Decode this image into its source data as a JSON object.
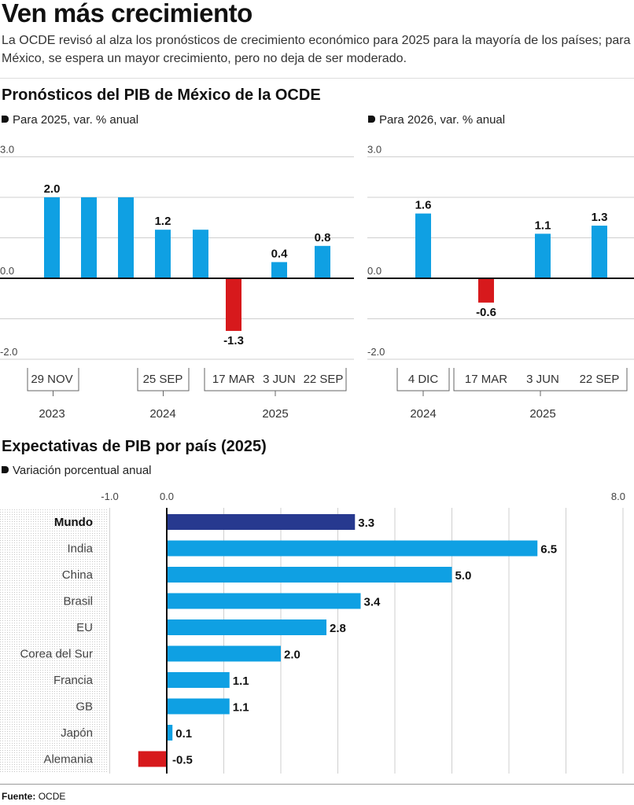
{
  "header": {
    "title": "Ven más crecimiento",
    "subtitle": "La OCDE revisó al alza los pronósticos de crecimiento económico para 2025 para la mayoría de los países; para México, se espera un mayor crecimiento, pero no deja de ser moderado."
  },
  "section1": {
    "title": "Pronósticos del PIB de México de la OCDE"
  },
  "section2": {
    "title": "Expectativas de PIB por país (2025)"
  },
  "footer": {
    "source_label": "Fuente:",
    "source_value": "OCDE"
  },
  "colors": {
    "positive": "#0fa0e3",
    "negative": "#d7191c",
    "highlight": "#27398f",
    "axis": "#111111",
    "grid": "#cfcfcf"
  },
  "chart_data": [
    {
      "type": "bar",
      "subtitle": "Para 2025, var. % anual",
      "categories": [
        "29 NOV 2023",
        "",
        "",
        "25 SEP 2024",
        "",
        "17 MAR 2025",
        "3 JUN 2025",
        "22 SEP 2025"
      ],
      "values": [
        2.0,
        2.0,
        2.0,
        1.2,
        1.2,
        -1.3,
        0.4,
        0.8
      ],
      "data_labels": [
        "2.0",
        "",
        "",
        "1.2",
        "",
        "-1.3",
        "0.4",
        "0.8"
      ],
      "date_labels": [
        "29 NOV",
        "25 SEP",
        "17 MAR",
        "3 JUN",
        "22 SEP"
      ],
      "year_labels": [
        "2023",
        "2024",
        "2025"
      ],
      "y_ticks": [
        "3.0",
        "0.0",
        "-2.0"
      ],
      "ylim": [
        -2.0,
        3.0
      ]
    },
    {
      "type": "bar",
      "subtitle": "Para 2026, var. % anual",
      "categories": [
        "4 DIC 2024",
        "17 MAR 2025",
        "3 JUN 2025",
        "22 SEP 2025"
      ],
      "values": [
        1.6,
        -0.6,
        1.1,
        1.3
      ],
      "data_labels": [
        "1.6",
        "-0.6",
        "1.1",
        "1.3"
      ],
      "date_labels": [
        "4 DIC",
        "17 MAR",
        "3 JUN",
        "22 SEP"
      ],
      "year_labels": [
        "2024",
        "2025"
      ],
      "y_ticks": [
        "3.0",
        "0.0",
        "-2.0"
      ],
      "ylim": [
        -2.0,
        3.0
      ]
    },
    {
      "type": "bar",
      "orientation": "horizontal",
      "subtitle": "Variación porcentual anual",
      "categories": [
        "Mundo",
        "India",
        "China",
        "Brasil",
        "EU",
        "Corea del Sur",
        "Francia",
        "GB",
        "Japón",
        "Alemania"
      ],
      "values": [
        3.3,
        6.5,
        5.0,
        3.4,
        2.8,
        2.0,
        1.1,
        1.1,
        0.1,
        -0.5
      ],
      "data_labels": [
        "3.3",
        "6.5",
        "5.0",
        "3.4",
        "2.8",
        "2.0",
        "1.1",
        "1.1",
        "0.1",
        "-0.5"
      ],
      "highlight": "Mundo",
      "x_ticks": [
        "-1.0",
        "0.0",
        "8.0"
      ],
      "xlim": [
        -1.0,
        8.0
      ]
    }
  ]
}
